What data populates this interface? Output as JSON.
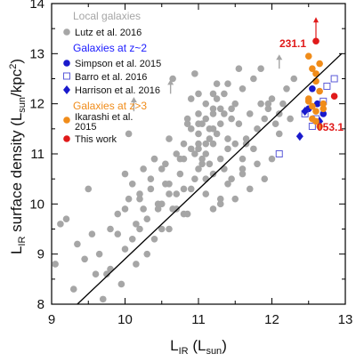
{
  "chart_data": {
    "type": "scatter",
    "title": "",
    "xlabel": "L_IR (L_sun)",
    "ylabel": "L_IR surface density (L_sun/kpc^2)",
    "xlim": [
      9,
      13
    ],
    "ylim": [
      8,
      14
    ],
    "xticks": [
      "9",
      "10",
      "11",
      "12",
      "13"
    ],
    "yticks": [
      "8",
      "9",
      "10",
      "11",
      "12",
      "13",
      "14"
    ],
    "grid": false,
    "legend_position": "top-left",
    "colors": {
      "local": "#a6a6a6",
      "zsim_head": "#1a1aff",
      "z3_head": "#f08c1a",
      "simpson": "#1a1acc",
      "barro": "#5a5ad8",
      "harrison": "#1a1acc",
      "ikarashi": "#f08c1a",
      "thiswork": "#e01a1a",
      "fit": "#000000"
    },
    "legend": {
      "local_header": "Local galaxies",
      "lutz": "Lutz et al. 2016",
      "z2_header": "Galaxies at z~2",
      "simpson": "Simpson et al. 2015",
      "barro": "Barro et al. 2016",
      "harrison": "Harrison et al. 2016",
      "z3_header": "Galaxies at z>3",
      "ikarashi_l1": "Ikarashi et al.",
      "ikarashi_l2": "2015",
      "thiswork": "This work"
    },
    "annotations": [
      "231.1",
      "053.1"
    ],
    "fit_line": {
      "x": [
        9.35,
        12.95
      ],
      "y": [
        8.0,
        13.0
      ]
    },
    "series": [
      {
        "name": "Lutz et al. 2016",
        "marker": "circle-filled",
        "x": [
          9.05,
          9.12,
          9.2,
          9.3,
          9.35,
          9.45,
          9.5,
          9.6,
          9.7,
          9.8,
          9.9,
          9.95,
          10.0,
          10.05,
          10.1,
          10.15,
          10.2,
          10.25,
          10.3,
          10.35,
          10.4,
          10.45,
          10.5,
          10.55,
          10.6,
          10.6,
          10.65,
          10.7,
          10.75,
          10.8,
          10.85,
          10.9,
          10.95,
          11.0,
          11.0,
          11.05,
          11.05,
          11.1,
          11.1,
          11.15,
          11.15,
          11.2,
          11.2,
          11.25,
          11.25,
          11.3,
          11.3,
          11.35,
          11.35,
          11.4,
          11.45,
          11.45,
          11.5,
          11.5,
          11.55,
          11.6,
          11.6,
          11.65,
          11.7,
          11.75,
          11.8,
          11.85,
          11.9,
          11.95,
          12.0,
          12.05,
          12.1,
          12.2,
          12.25,
          12.3,
          10.8,
          10.9,
          11.0,
          11.1,
          11.2,
          11.3,
          11.0,
          10.7,
          10.5,
          10.3,
          10.9,
          11.1,
          11.4,
          11.6,
          11.8,
          12.0,
          10.6,
          10.8,
          11.2,
          11.5,
          11.7,
          11.9,
          10.4,
          10.2,
          10.0,
          9.8,
          11.0,
          11.2,
          11.4,
          10.9,
          10.7,
          11.3,
          11.1,
          10.5,
          12.1,
          11.85,
          11.55,
          11.25,
          10.95,
          10.65,
          10.35,
          10.05,
          9.75,
          9.55,
          11.05,
          11.15,
          11.35,
          11.45,
          11.65,
          11.75,
          10.75,
          10.85,
          10.55,
          10.45,
          10.25,
          10.15,
          9.65,
          9.9,
          10.0,
          10.1,
          11.0,
          11.1,
          11.2,
          11.3,
          10.95,
          10.85,
          12.15,
          11.95,
          11.6,
          11.4,
          11.2,
          11.0,
          10.8,
          10.6,
          10.4,
          10.2
        ],
        "y": [
          8.8,
          9.6,
          9.7,
          8.3,
          9.2,
          8.9,
          10.3,
          8.6,
          8.1,
          9.5,
          9.8,
          8.4,
          10.6,
          10.1,
          9.3,
          8.8,
          10.2,
          9.9,
          9.0,
          10.5,
          10.9,
          10.0,
          9.5,
          10.8,
          11.3,
          10.4,
          9.9,
          11.0,
          10.6,
          11.2,
          9.8,
          11.1,
          10.5,
          11.8,
          11.4,
          10.9,
          11.6,
          11.0,
          12.0,
          11.5,
          10.8,
          11.9,
          11.2,
          12.1,
          11.4,
          11.6,
          10.9,
          11.8,
          12.2,
          11.3,
          11.7,
          10.5,
          12.0,
          11.2,
          11.6,
          10.9,
          12.3,
          11.3,
          11.8,
          12.5,
          11.5,
          12.0,
          11.7,
          11.9,
          12.1,
          11.6,
          11.8,
          12.3,
          11.7,
          12.5,
          10.9,
          10.3,
          10.7,
          10.2,
          10.6,
          10.1,
          11.1,
          10.2,
          10.0,
          9.7,
          11.5,
          11.7,
          10.4,
          10.6,
          10.8,
          10.9,
          9.5,
          9.8,
          9.9,
          10.1,
          10.3,
          10.5,
          9.3,
          9.5,
          9.1,
          8.7,
          12.2,
          11.8,
          11.1,
          12.1,
          9.9,
          10.0,
          10.5,
          10.7,
          11.4,
          12.7,
          12.7,
          12.4,
          12.6,
          12.5,
          10.3,
          11.4,
          8.6,
          9.4,
          10.8,
          11.3,
          10.7,
          11.9,
          11.2,
          11.1,
          10.9,
          11.6,
          10.4,
          9.9,
          10.7,
          9.6,
          9.0,
          9.4,
          9.9,
          10.4,
          11.6,
          11.2,
          11.5,
          11.9,
          11.0,
          11.7,
          12.0,
          12.0,
          10.7,
          12.4,
          12.2,
          11.2,
          10.3,
          10.2,
          10.9,
          10.1
        ]
      },
      {
        "name": "Lutz et al. 2016 (lower limits)",
        "marker": "arrow-up",
        "x": [
          10.62,
          10.12,
          12.1
        ],
        "y": [
          12.2,
          11.85,
          12.7
        ]
      },
      {
        "name": "Simpson et al. 2015",
        "marker": "circle-filled",
        "x": [
          12.55,
          12.62,
          12.7,
          12.5
        ],
        "y": [
          12.3,
          12.0,
          11.8,
          11.9
        ]
      },
      {
        "name": "Barro et al. 2016",
        "marker": "square-open",
        "x": [
          12.1,
          12.45,
          12.6,
          12.7,
          12.85,
          12.75,
          12.55
        ],
        "y": [
          11.0,
          11.8,
          11.7,
          12.05,
          12.5,
          12.35,
          11.55
        ]
      },
      {
        "name": "Harrison et al. 2016",
        "marker": "diamond-filled",
        "x": [
          12.38,
          12.45,
          12.65
        ],
        "y": [
          11.35,
          11.85,
          11.65
        ]
      },
      {
        "name": "Ikarashi et al. 2015",
        "marker": "circle-filled",
        "x": [
          12.5,
          12.55,
          12.6,
          12.6,
          12.65,
          12.65,
          12.5,
          12.55,
          12.6,
          12.7,
          12.55,
          12.6,
          12.5,
          12.65,
          12.7
        ],
        "y": [
          12.95,
          12.7,
          12.6,
          12.45,
          12.8,
          12.25,
          12.05,
          11.95,
          11.85,
          11.9,
          11.7,
          11.65,
          12.1,
          11.55,
          12.0
        ]
      },
      {
        "name": "This work",
        "marker": "circle-filled",
        "x": [
          12.6,
          12.85
        ],
        "y": [
          13.25,
          12.15
        ]
      }
    ]
  }
}
